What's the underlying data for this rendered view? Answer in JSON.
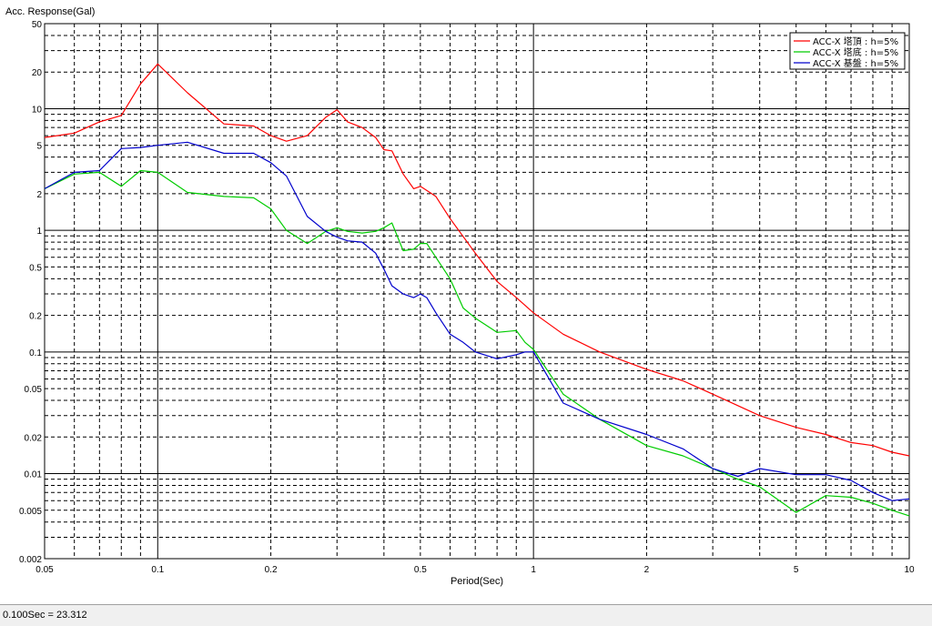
{
  "status": {
    "text": "0.100Sec = 23.312"
  },
  "chart_data": {
    "type": "line",
    "xscale": "log",
    "yscale": "log",
    "xlim": [
      0.05,
      10
    ],
    "ylim": [
      0.002,
      50
    ],
    "xlabel": "Period(Sec)",
    "ylabel": "Acc. Response(Gal)",
    "grid": true,
    "legend_position": "top-right",
    "xticks": [
      0.05,
      0.1,
      0.2,
      0.5,
      1,
      2,
      5,
      10
    ],
    "xtick_labels": [
      "0.05",
      "0.1",
      "0.2",
      "0.5",
      "1",
      "2",
      "5",
      "10"
    ],
    "yticks": [
      0.002,
      0.005,
      0.01,
      0.02,
      0.05,
      0.1,
      0.2,
      0.5,
      1,
      2,
      5,
      10,
      20,
      50
    ],
    "ytick_labels": [
      "0.002",
      "0.005",
      "0.01",
      "0.02",
      "0.05",
      "0.1",
      "0.2",
      "0.5",
      "1",
      "2",
      "5",
      "10",
      "20",
      "50"
    ],
    "series": [
      {
        "name": "ACC-X 塔頂 : h=5%",
        "color": "#ff0000",
        "x": [
          0.05,
          0.06,
          0.07,
          0.08,
          0.09,
          0.1,
          0.12,
          0.15,
          0.18,
          0.2,
          0.22,
          0.25,
          0.28,
          0.3,
          0.32,
          0.35,
          0.38,
          0.4,
          0.42,
          0.45,
          0.48,
          0.5,
          0.55,
          0.6,
          0.7,
          0.8,
          0.9,
          1.0,
          1.2,
          1.5,
          2.0,
          2.5,
          3.0,
          4.0,
          5.0,
          6.0,
          7.0,
          8.0,
          9.0,
          10.0
        ],
        "y": [
          5.8,
          6.3,
          7.8,
          8.8,
          16,
          23.3,
          13.5,
          7.5,
          7.2,
          6.0,
          5.4,
          6.0,
          8.5,
          9.8,
          7.8,
          7.0,
          5.8,
          4.6,
          4.5,
          2.9,
          2.2,
          2.3,
          1.9,
          1.25,
          0.65,
          0.38,
          0.28,
          0.21,
          0.14,
          0.1,
          0.072,
          0.058,
          0.045,
          0.03,
          0.024,
          0.021,
          0.018,
          0.017,
          0.015,
          0.014
        ]
      },
      {
        "name": "ACC-X 塔底 : h=5%",
        "color": "#00cc00",
        "x": [
          0.05,
          0.06,
          0.07,
          0.08,
          0.09,
          0.1,
          0.12,
          0.15,
          0.18,
          0.2,
          0.22,
          0.25,
          0.28,
          0.3,
          0.32,
          0.35,
          0.38,
          0.4,
          0.42,
          0.45,
          0.48,
          0.5,
          0.52,
          0.55,
          0.6,
          0.65,
          0.7,
          0.8,
          0.9,
          0.95,
          1.0,
          1.2,
          1.5,
          2.0,
          2.5,
          3.0,
          3.5,
          4.0,
          5.0,
          6.0,
          7.0,
          8.0,
          9.0,
          10.0
        ],
        "y": [
          2.2,
          2.9,
          3.0,
          2.3,
          3.1,
          3.0,
          2.05,
          1.9,
          1.85,
          1.5,
          1.0,
          0.78,
          0.98,
          1.05,
          0.98,
          0.95,
          0.98,
          1.05,
          1.15,
          0.68,
          0.7,
          0.78,
          0.78,
          0.6,
          0.4,
          0.23,
          0.19,
          0.145,
          0.15,
          0.12,
          0.105,
          0.045,
          0.028,
          0.017,
          0.014,
          0.011,
          0.009,
          0.0078,
          0.0048,
          0.0066,
          0.0064,
          0.0057,
          0.005,
          0.0045
        ]
      },
      {
        "name": "ACC-X 基盤 : h=5%",
        "color": "#0000cc",
        "x": [
          0.05,
          0.06,
          0.07,
          0.08,
          0.09,
          0.1,
          0.12,
          0.15,
          0.18,
          0.2,
          0.22,
          0.25,
          0.28,
          0.3,
          0.32,
          0.35,
          0.38,
          0.4,
          0.42,
          0.45,
          0.48,
          0.5,
          0.52,
          0.55,
          0.6,
          0.65,
          0.7,
          0.8,
          0.9,
          0.95,
          1.0,
          1.2,
          1.5,
          2.0,
          2.5,
          3.0,
          3.5,
          4.0,
          5.0,
          6.0,
          7.0,
          8.0,
          9.0,
          10.0
        ],
        "y": [
          2.2,
          3.0,
          3.1,
          4.7,
          4.8,
          5.0,
          5.3,
          4.3,
          4.3,
          3.6,
          2.8,
          1.3,
          0.98,
          0.88,
          0.82,
          0.8,
          0.65,
          0.48,
          0.35,
          0.3,
          0.28,
          0.3,
          0.28,
          0.21,
          0.14,
          0.12,
          0.1,
          0.088,
          0.095,
          0.1,
          0.1,
          0.038,
          0.028,
          0.021,
          0.016,
          0.011,
          0.0095,
          0.011,
          0.0098,
          0.0098,
          0.0088,
          0.007,
          0.006,
          0.0062
        ]
      }
    ]
  }
}
